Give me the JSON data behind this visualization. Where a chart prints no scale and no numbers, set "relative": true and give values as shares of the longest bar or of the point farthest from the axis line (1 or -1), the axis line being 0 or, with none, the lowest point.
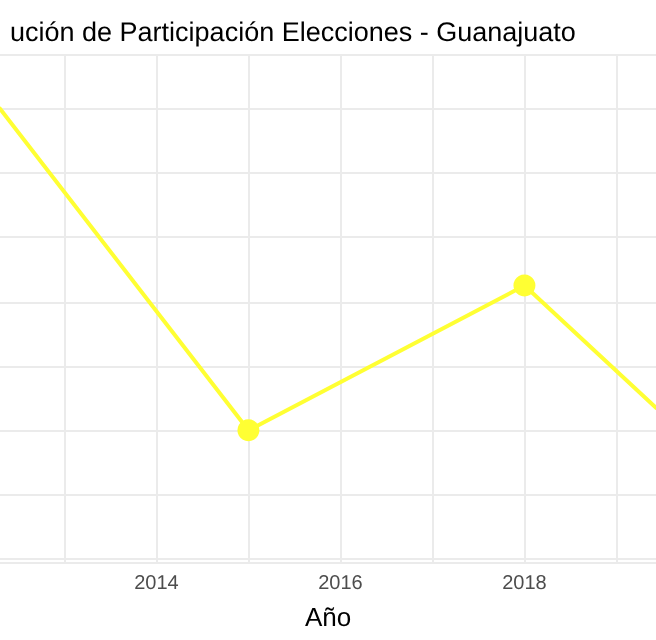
{
  "chart_data": {
    "type": "line",
    "title": "ución de Participación Elecciones - Guanajuato",
    "xlabel": "Año",
    "relative": true,
    "x": [
      2012.3,
      2015,
      2018,
      2019.43
    ],
    "series": [
      {
        "color": "#ffff33",
        "values": [
          1,
          0,
          0.45,
          0.07
        ]
      }
    ],
    "xlim": [
      2012.3,
      2019.43
    ],
    "xticks": [
      2014,
      2016,
      2018
    ],
    "grid": true,
    "marker": "circle",
    "line_style": "solid"
  }
}
